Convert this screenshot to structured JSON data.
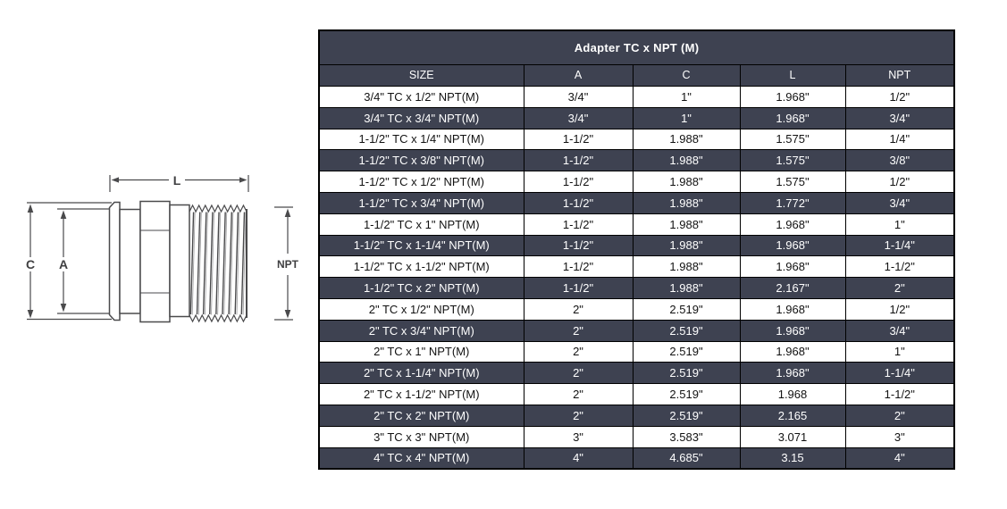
{
  "colors": {
    "dark_bg": "#3E4251",
    "border": "#000000",
    "line_color": "#4A4A4C",
    "thread_light": "#9A9A9C",
    "row_light_bg": "#FFFFFF",
    "text_light": "#FFFFFF",
    "text_dark": "#121212"
  },
  "diagram": {
    "labels": {
      "l": "L",
      "c": "C",
      "a": "A",
      "npt": "NPT"
    }
  },
  "table": {
    "title": "Adapter TC x NPT (M)",
    "columns": [
      "SIZE",
      "A",
      "C",
      "L",
      "NPT"
    ],
    "rows": [
      [
        "3/4\" TC x 1/2\" NPT(M)",
        "3/4\"",
        "1\"",
        "1.968\"",
        "1/2\""
      ],
      [
        "3/4\" TC x 3/4\" NPT(M)",
        "3/4\"",
        "1\"",
        "1.968\"",
        "3/4\""
      ],
      [
        "1-1/2\" TC x 1/4\" NPT(M)",
        "1-1/2\"",
        "1.988\"",
        "1.575\"",
        "1/4\""
      ],
      [
        "1-1/2\" TC x 3/8\" NPT(M)",
        "1-1/2\"",
        "1.988\"",
        "1.575\"",
        "3/8\""
      ],
      [
        "1-1/2\" TC x 1/2\" NPT(M)",
        "1-1/2\"",
        "1.988\"",
        "1.575\"",
        "1/2\""
      ],
      [
        "1-1/2\" TC x 3/4\" NPT(M)",
        "1-1/2\"",
        "1.988\"",
        "1.772\"",
        "3/4\""
      ],
      [
        "1-1/2\" TC x 1\" NPT(M)",
        "1-1/2\"",
        "1.988\"",
        "1.968\"",
        "1\""
      ],
      [
        "1-1/2\" TC x 1-1/4\" NPT(M)",
        "1-1/2\"",
        "1.988\"",
        "1.968\"",
        "1-1/4\""
      ],
      [
        "1-1/2\" TC x 1-1/2\" NPT(M)",
        "1-1/2\"",
        "1.988\"",
        "1.968\"",
        "1-1/2\""
      ],
      [
        "1-1/2\" TC x 2\" NPT(M)",
        "1-1/2\"",
        "1.988\"",
        "2.167\"",
        "2\""
      ],
      [
        "2\" TC x 1/2\" NPT(M)",
        "2\"",
        "2.519\"",
        "1.968\"",
        "1/2\""
      ],
      [
        "2\" TC x 3/4\" NPT(M)",
        "2\"",
        "2.519\"",
        "1.968\"",
        "3/4\""
      ],
      [
        "2\" TC x 1\" NPT(M)",
        "2\"",
        "2.519\"",
        "1.968\"",
        "1\""
      ],
      [
        "2\" TC x 1-1/4\" NPT(M)",
        "2\"",
        "2.519\"",
        "1.968\"",
        "1-1/4\""
      ],
      [
        "2\" TC x 1-1/2\" NPT(M)",
        "2\"",
        "2.519\"",
        "1.968",
        "1-1/2\""
      ],
      [
        "2\" TC x 2\" NPT(M)",
        "2\"",
        "2.519\"",
        "2.165",
        "2\""
      ],
      [
        "3\" TC x 3\" NPT(M)",
        "3\"",
        "3.583\"",
        "3.071",
        "3\""
      ],
      [
        "4\" TC x 4\" NPT(M)",
        "4\"",
        "4.685\"",
        "3.15",
        "4\""
      ]
    ]
  }
}
